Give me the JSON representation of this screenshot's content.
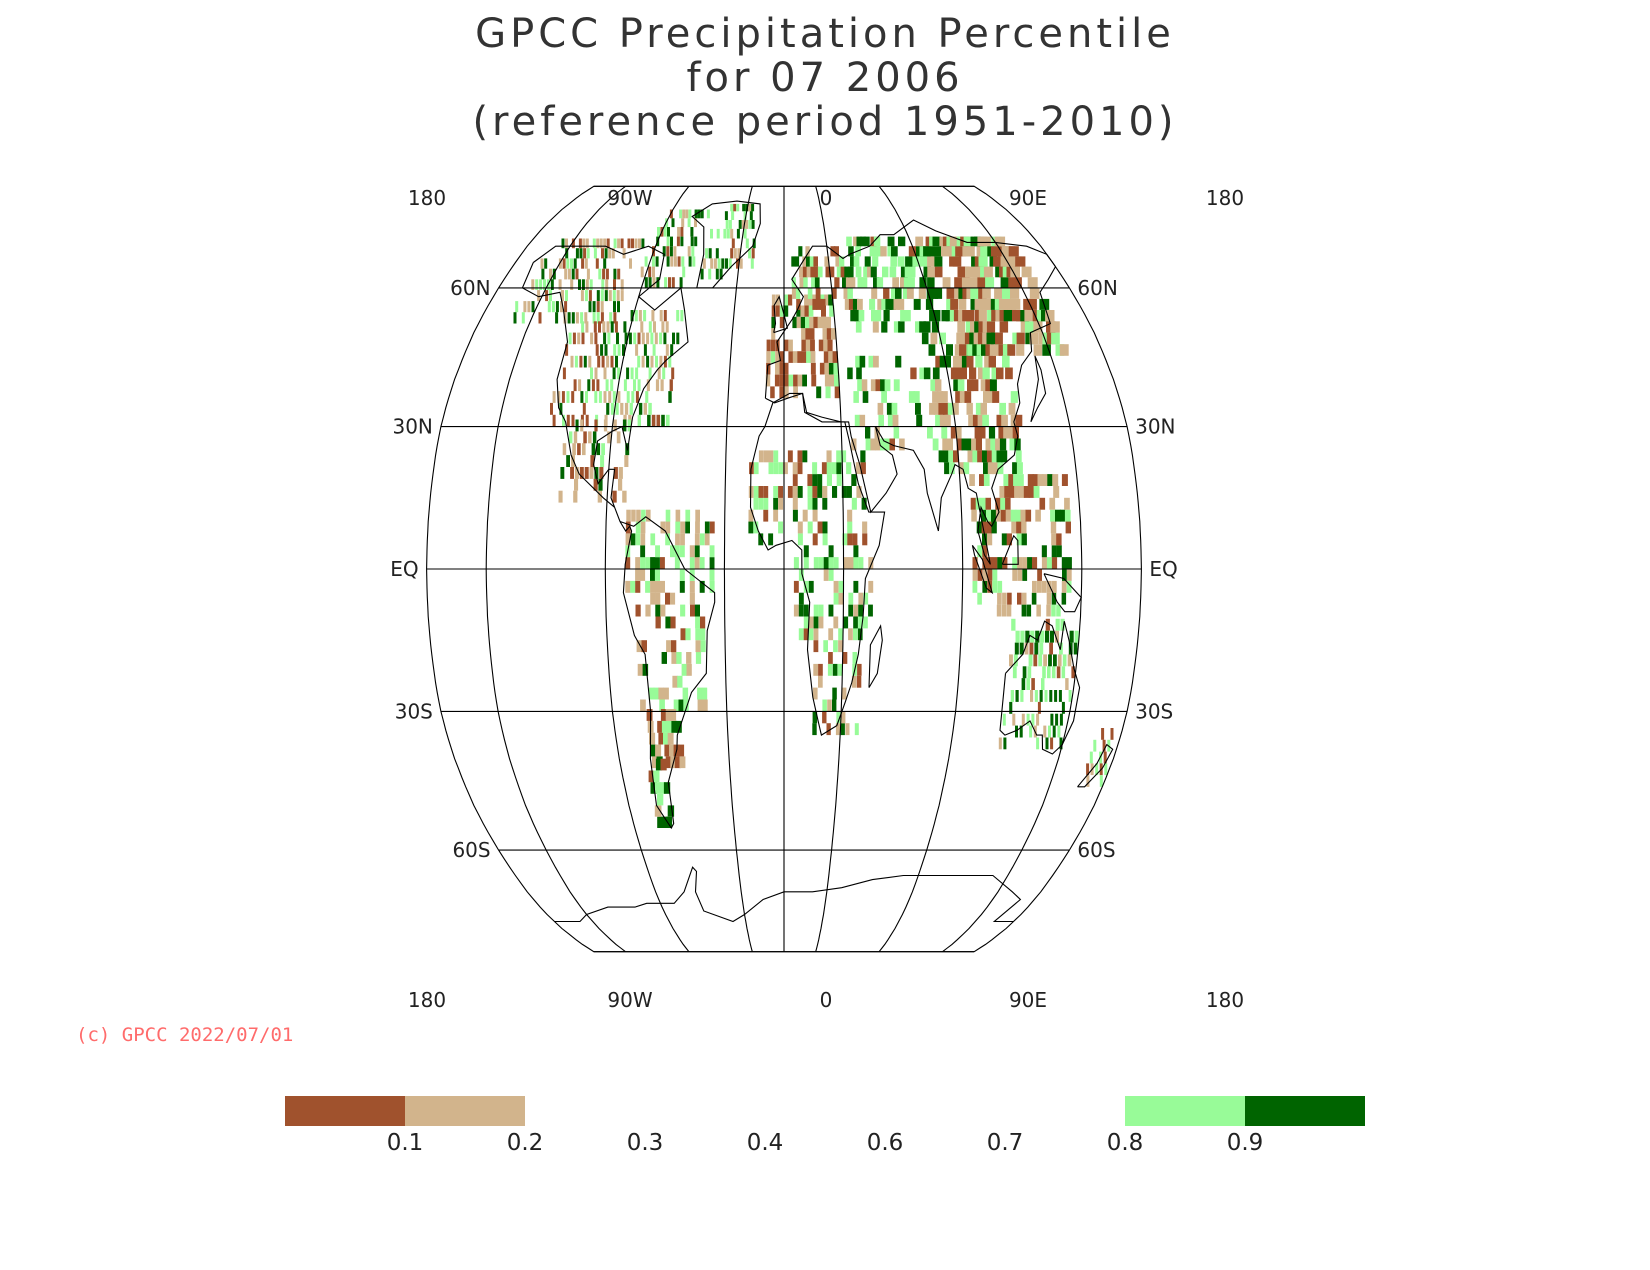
{
  "title": {
    "line1": "GPCC Precipitation Percentile",
    "line2": "for 07 2006",
    "line3": "(reference period 1951-2010)"
  },
  "map": {
    "projection": "Robinson",
    "lon_labels_top": [
      "180",
      "90W",
      "0",
      "90E",
      "180"
    ],
    "lon_labels_bottom": [
      "180",
      "90W",
      "0",
      "90E",
      "180"
    ],
    "lat_labels_left": [
      "60N",
      "30N",
      "EQ",
      "30S",
      "60S"
    ],
    "lat_labels_right": [
      "60N",
      "30N",
      "EQ",
      "30S",
      "60S"
    ]
  },
  "copyright": "(c) GPCC 2022/07/01",
  "legend": {
    "boxes": [
      {
        "color": "#a0522d",
        "from": "",
        "to": "0.1"
      },
      {
        "color": "#d2b48c",
        "from": "0.1",
        "to": "0.2"
      },
      {
        "color": "#98fb98",
        "from": "0.8",
        "to": "0.9"
      },
      {
        "color": "#006400",
        "from": "0.9",
        "to": ""
      }
    ],
    "tick_labels": [
      "0.1",
      "0.2",
      "0.3",
      "0.4",
      "0.6",
      "0.7",
      "0.8",
      "0.9"
    ]
  },
  "colors": {
    "dry_extreme": "#a0522d",
    "dry": "#d2b48c",
    "wet": "#98fb98",
    "wet_extreme": "#006400",
    "coast": "#000000",
    "copyright": "#ff6b6b"
  }
}
